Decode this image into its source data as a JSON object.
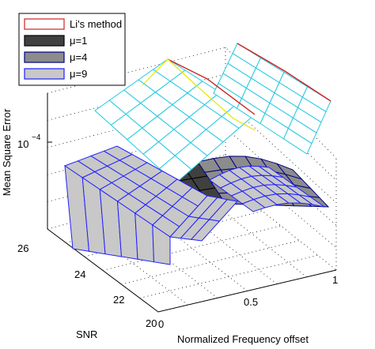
{
  "chart_data": {
    "type": "surface3d",
    "title": "",
    "xlabel": "Normalized Frequency offset",
    "ylabel": "SNR",
    "zlabel": "Mean Square Error",
    "xticks": [
      "0",
      "0.5",
      "1"
    ],
    "yticks": [
      "20",
      "22",
      "24",
      "26"
    ],
    "zticks": [
      "10",
      "−4"
    ],
    "xlim": [
      0,
      1
    ],
    "ylim": [
      20,
      26
    ],
    "z_scale": "log",
    "grid": true,
    "legend_position": "top-left",
    "series": [
      {
        "name": "Li's method",
        "face_color": "#ffffff",
        "edge_color": "#cc2222"
      },
      {
        "name": "μ=1",
        "face_color": "#404040",
        "edge_color": "#000000"
      },
      {
        "name": "μ=4",
        "face_color": "#8c8c8c",
        "edge_color": "#000080"
      },
      {
        "name": "μ=9",
        "face_color": "#c8c8c8",
        "edge_color": "#2020ff"
      }
    ]
  }
}
